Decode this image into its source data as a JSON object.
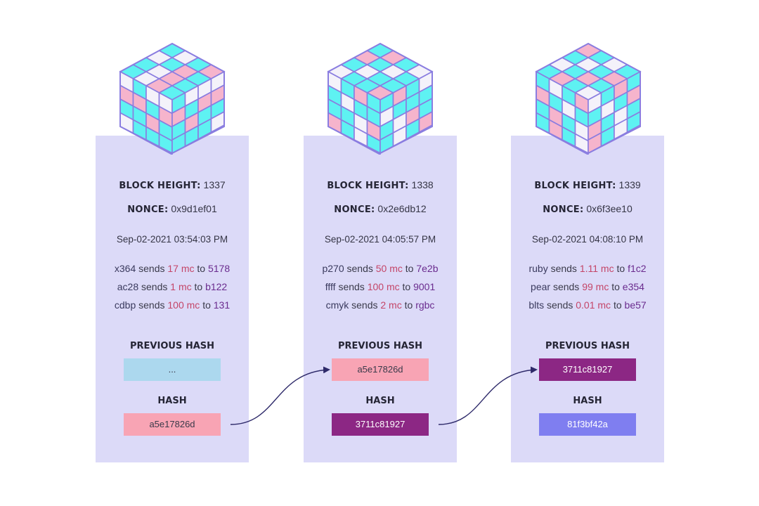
{
  "blocks": [
    {
      "height_label": "BLOCK HEIGHT:",
      "height_value": "1337",
      "nonce_label": "NONCE:",
      "nonce_value": "0x9d1ef01",
      "timestamp": "Sep-02-2021 03:54:03 PM",
      "transactions": [
        {
          "from": "x364",
          "sends": "sends",
          "amount": "17 mc",
          "to": "to",
          "dest": "5178"
        },
        {
          "from": "ac28",
          "sends": "sends",
          "amount": "1 mc",
          "to": "to",
          "dest": "b122"
        },
        {
          "from": "cdbp",
          "sends": "sends",
          "amount": "100 mc",
          "to": "to",
          "dest": "131"
        }
      ],
      "previous_hash_label": "PREVIOUS HASH",
      "previous_hash": "...",
      "previous_hash_color": "#acd8ee",
      "hash_label": "HASH",
      "hash": "a5e17826d",
      "hash_color": "#f8a4b4",
      "hash_text_color": "#3a3a4a"
    },
    {
      "height_label": "BLOCK HEIGHT:",
      "height_value": "1338",
      "nonce_label": "NONCE:",
      "nonce_value": "0x2e6db12",
      "timestamp": "Sep-02-2021 04:05:57 PM",
      "transactions": [
        {
          "from": "p270",
          "sends": "sends",
          "amount": "50 mc",
          "to": "to",
          "dest": "7e2b"
        },
        {
          "from": "ffff",
          "sends": "sends",
          "amount": "100 mc",
          "to": "to",
          "dest": "9001"
        },
        {
          "from": "cmyk",
          "sends": "sends",
          "amount": "2 mc",
          "to": "to",
          "dest": "rgbc"
        }
      ],
      "previous_hash_label": "PREVIOUS HASH",
      "previous_hash": "a5e17826d",
      "previous_hash_color": "#f8a4b4",
      "hash_label": "HASH",
      "hash": "3711c81927",
      "hash_color": "#8c2784",
      "hash_text_color": "#ffffff"
    },
    {
      "height_label": "BLOCK HEIGHT:",
      "height_value": "1339",
      "nonce_label": "NONCE:",
      "nonce_value": "0x6f3ee10",
      "timestamp": "Sep-02-2021 04:08:10 PM",
      "transactions": [
        {
          "from": "ruby",
          "sends": "sends",
          "amount": "1.11 mc",
          "to": "to",
          "dest": "f1c2"
        },
        {
          "from": "pear",
          "sends": "sends",
          "amount": "99 mc",
          "to": "to",
          "dest": "e354"
        },
        {
          "from": "blts",
          "sends": "sends",
          "amount": "0.01 mc",
          "to": "to",
          "dest": "be57"
        }
      ],
      "previous_hash_label": "PREVIOUS HASH",
      "previous_hash": "3711c81927",
      "previous_hash_color": "#8c2784",
      "previous_hash_text_color": "#ffffff",
      "hash_label": "HASH",
      "hash": "81f3bf42a",
      "hash_color": "#7f7ef0",
      "hash_text_color": "#ffffff"
    }
  ],
  "colors": {
    "block_bg": "#dcdaf8",
    "cube_cyan": "#5ef2f2",
    "cube_pink": "#f6b4cc",
    "cube_white": "#f4f2fa",
    "cube_edge": "#8a7de0",
    "arrow": "#2e2a6a"
  }
}
